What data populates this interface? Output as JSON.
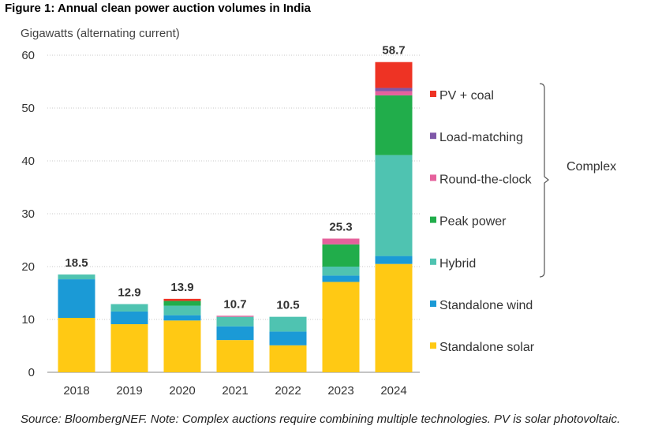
{
  "figure_title": "Figure 1:  Annual clean power auction volumes in India",
  "source_note": "Source: BloombergNEF. Note: Complex auctions require combining multiple technologies. PV is solar photovoltaic.",
  "chart_data": {
    "type": "bar",
    "stacked": true,
    "title": "",
    "ylabel": "Gigawatts (alternating current)",
    "xlabel": "",
    "ylim": [
      0,
      60
    ],
    "yticks": [
      0,
      10,
      20,
      30,
      40,
      50,
      60
    ],
    "grid": "horizontal-dotted",
    "legend_position": "right",
    "categories": [
      "2018",
      "2019",
      "2020",
      "2021",
      "2022",
      "2023",
      "2024"
    ],
    "totals": [
      "18.5",
      "12.9",
      "13.9",
      "10.7",
      "10.5",
      "25.3",
      "58.7"
    ],
    "series": [
      {
        "name": "Standalone solar",
        "color": "#ffc914",
        "values": [
          10.3,
          9.1,
          9.8,
          6.1,
          5.1,
          17.1,
          20.5
        ]
      },
      {
        "name": "Standalone wind",
        "color": "#1b9ad6",
        "values": [
          7.3,
          2.4,
          1.0,
          2.6,
          2.6,
          1.2,
          1.5
        ]
      },
      {
        "name": "Hybrid",
        "color": "#4fc3b1",
        "values": [
          0.9,
          1.4,
          1.8,
          1.8,
          2.8,
          1.7,
          19.1
        ]
      },
      {
        "name": "Peak power",
        "color": "#21ad4b",
        "values": [
          0,
          0,
          0.9,
          0,
          0,
          4.2,
          11.3
        ]
      },
      {
        "name": "Round-the-clock",
        "color": "#e5619c",
        "values": [
          0,
          0,
          0,
          0.2,
          0,
          1.1,
          0.8
        ]
      },
      {
        "name": "Load-matching",
        "color": "#7e57a8",
        "values": [
          0,
          0,
          0,
          0,
          0,
          0,
          0.6
        ]
      },
      {
        "name": "PV + coal",
        "color": "#ee3324",
        "values": [
          0,
          0,
          0.4,
          0,
          0,
          0,
          4.9
        ]
      }
    ],
    "legend_order": [
      "PV + coal",
      "Load-matching",
      "Round-the-clock",
      "Peak power",
      "Hybrid",
      "Standalone wind",
      "Standalone solar"
    ],
    "bracket_label": "Complex",
    "bracket_series": [
      "PV + coal",
      "Load-matching",
      "Round-the-clock",
      "Peak power",
      "Hybrid"
    ]
  }
}
